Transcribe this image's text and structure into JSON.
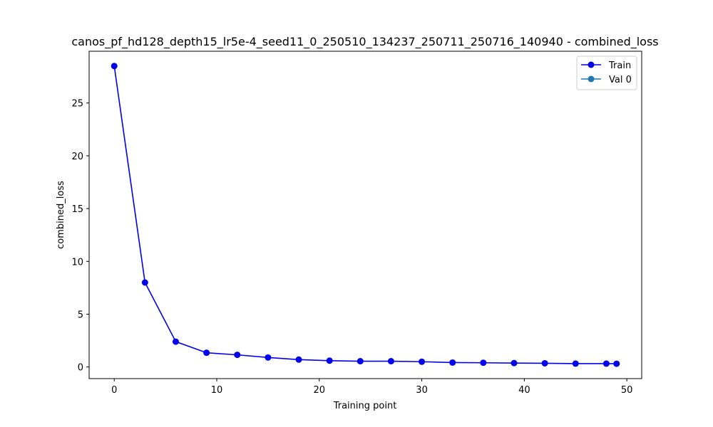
{
  "chart_data": {
    "type": "line",
    "title": "canos_pf_hd128_depth15_lr5e-4_seed11_0_250510_134237_250711_250716_140940 - combined_loss",
    "xlabel": "Training point",
    "ylabel": "combined_loss",
    "xlim": [
      -2.45,
      51.45
    ],
    "ylim": [
      -1.1,
      29.9
    ],
    "xticks": [
      0,
      10,
      20,
      30,
      40,
      50
    ],
    "yticks": [
      0,
      5,
      10,
      15,
      20,
      25
    ],
    "grid": false,
    "legend_position": "upper-right",
    "series": [
      {
        "name": "Train",
        "color": "#0000ee",
        "marker": "circle",
        "x": [
          0,
          3,
          6,
          9,
          12,
          15,
          18,
          21,
          24,
          27,
          30,
          33,
          36,
          39,
          42,
          45,
          48,
          49
        ],
        "y": [
          28.5,
          8.0,
          2.4,
          1.35,
          1.15,
          0.9,
          0.7,
          0.6,
          0.55,
          0.55,
          0.5,
          0.42,
          0.4,
          0.37,
          0.35,
          0.32,
          0.32,
          0.31
        ]
      },
      {
        "name": "Val 0",
        "color": "#1f77b4",
        "marker": "circle",
        "x": [],
        "y": []
      }
    ]
  }
}
